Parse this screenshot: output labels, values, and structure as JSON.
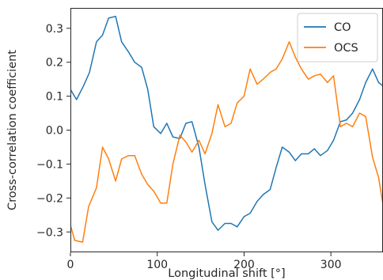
{
  "chart_data": {
    "type": "line",
    "title": "",
    "xlabel": "Longitudinal shift [°]",
    "ylabel": "Cross-correlation coefficient",
    "xlim": [
      0,
      360
    ],
    "ylim": [
      -0.36,
      0.36
    ],
    "xticks": [
      0,
      100,
      200,
      300
    ],
    "yticks": [
      -0.3,
      -0.2,
      -0.1,
      0.0,
      0.1,
      0.2,
      0.3
    ],
    "xtick_labels": [
      "0",
      "100",
      "200",
      "300"
    ],
    "ytick_labels": [
      "−0.3",
      "−0.2",
      "−0.1",
      "0.0",
      "0.1",
      "0.2",
      "0.3"
    ],
    "grid": false,
    "legend_position": "top-right",
    "series": [
      {
        "name": "CO",
        "color": "#1f77b4",
        "points": [
          [
            0,
            0.12
          ],
          [
            7,
            0.09
          ],
          [
            15,
            0.13
          ],
          [
            22,
            0.17
          ],
          [
            30,
            0.26
          ],
          [
            37,
            0.28
          ],
          [
            44,
            0.33
          ],
          [
            52,
            0.335
          ],
          [
            59,
            0.26
          ],
          [
            67,
            0.23
          ],
          [
            74,
            0.2
          ],
          [
            82,
            0.185
          ],
          [
            89,
            0.12
          ],
          [
            96,
            0.01
          ],
          [
            104,
            -0.01
          ],
          [
            111,
            0.02
          ],
          [
            118,
            -0.02
          ],
          [
            126,
            -0.025
          ],
          [
            133,
            0.02
          ],
          [
            140,
            0.025
          ],
          [
            148,
            -0.05
          ],
          [
            155,
            -0.16
          ],
          [
            163,
            -0.27
          ],
          [
            170,
            -0.295
          ],
          [
            178,
            -0.275
          ],
          [
            185,
            -0.275
          ],
          [
            192,
            -0.285
          ],
          [
            200,
            -0.255
          ],
          [
            207,
            -0.245
          ],
          [
            215,
            -0.21
          ],
          [
            222,
            -0.19
          ],
          [
            230,
            -0.175
          ],
          [
            237,
            -0.11
          ],
          [
            244,
            -0.05
          ],
          [
            252,
            -0.065
          ],
          [
            259,
            -0.09
          ],
          [
            266,
            -0.07
          ],
          [
            274,
            -0.07
          ],
          [
            281,
            -0.055
          ],
          [
            288,
            -0.075
          ],
          [
            296,
            -0.06
          ],
          [
            303,
            -0.03
          ],
          [
            311,
            0.025
          ],
          [
            318,
            0.03
          ],
          [
            325,
            0.05
          ],
          [
            333,
            0.09
          ],
          [
            340,
            0.14
          ],
          [
            348,
            0.18
          ],
          [
            355,
            0.14
          ],
          [
            360,
            0.13
          ]
        ]
      },
      {
        "name": "OCS",
        "color": "#ff7f0e",
        "points": [
          [
            0,
            -0.28
          ],
          [
            5,
            -0.325
          ],
          [
            14,
            -0.33
          ],
          [
            21,
            -0.225
          ],
          [
            30,
            -0.17
          ],
          [
            37,
            -0.05
          ],
          [
            44,
            -0.085
          ],
          [
            52,
            -0.15
          ],
          [
            59,
            -0.085
          ],
          [
            67,
            -0.075
          ],
          [
            74,
            -0.075
          ],
          [
            82,
            -0.13
          ],
          [
            89,
            -0.16
          ],
          [
            96,
            -0.18
          ],
          [
            104,
            -0.215
          ],
          [
            111,
            -0.215
          ],
          [
            118,
            -0.1
          ],
          [
            126,
            -0.015
          ],
          [
            133,
            -0.035
          ],
          [
            140,
            -0.065
          ],
          [
            148,
            -0.03
          ],
          [
            155,
            -0.07
          ],
          [
            163,
            -0.01
          ],
          [
            170,
            0.075
          ],
          [
            178,
            0.01
          ],
          [
            185,
            0.02
          ],
          [
            192,
            0.08
          ],
          [
            200,
            0.1
          ],
          [
            207,
            0.18
          ],
          [
            215,
            0.135
          ],
          [
            222,
            0.15
          ],
          [
            230,
            0.17
          ],
          [
            237,
            0.18
          ],
          [
            244,
            0.21
          ],
          [
            252,
            0.26
          ],
          [
            259,
            0.215
          ],
          [
            266,
            0.18
          ],
          [
            274,
            0.15
          ],
          [
            281,
            0.16
          ],
          [
            288,
            0.165
          ],
          [
            296,
            0.14
          ],
          [
            303,
            0.16
          ],
          [
            311,
            0.01
          ],
          [
            318,
            0.02
          ],
          [
            325,
            0.01
          ],
          [
            333,
            0.05
          ],
          [
            340,
            0.04
          ],
          [
            348,
            -0.08
          ],
          [
            355,
            -0.14
          ],
          [
            360,
            -0.22
          ]
        ]
      }
    ]
  }
}
